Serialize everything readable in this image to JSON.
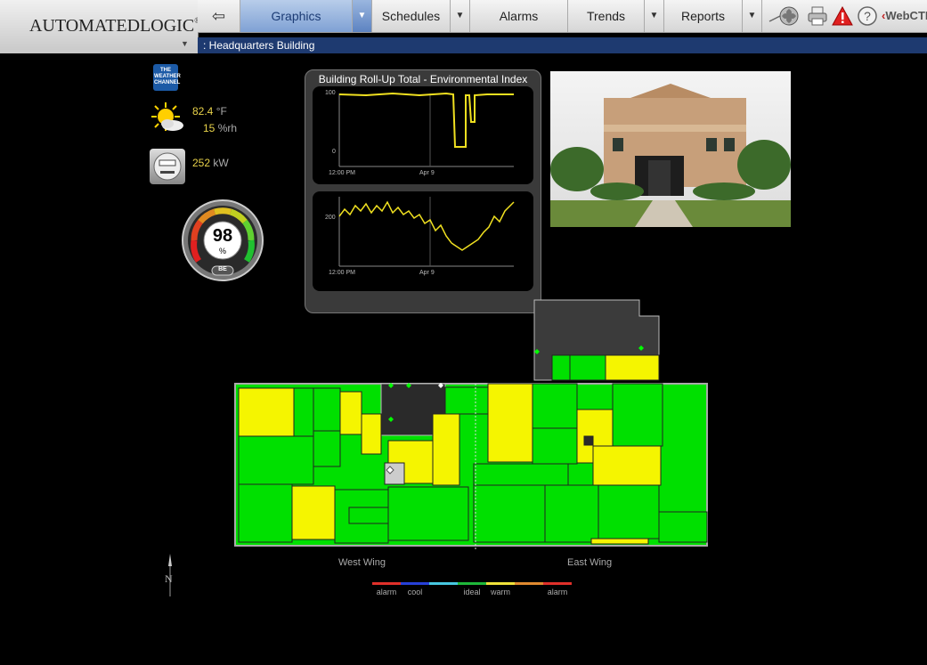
{
  "app": {
    "logo": "AutomatedLogic",
    "logo_mark": "®"
  },
  "nav": {
    "tabs": [
      {
        "label": "Graphics",
        "active": true,
        "has_dropdown": true
      },
      {
        "label": "Schedules",
        "active": false,
        "has_dropdown": true
      },
      {
        "label": "Alarms",
        "active": false,
        "has_dropdown": false
      },
      {
        "label": "Trends",
        "active": false,
        "has_dropdown": true
      },
      {
        "label": "Reports",
        "active": false,
        "has_dropdown": true
      }
    ],
    "brand": "WebCTRL"
  },
  "breadcrumb": ": Headquarters Building",
  "weather": {
    "badge": "THE WEATHER CHANNEL",
    "temp_value": "82.4",
    "temp_unit": "°F",
    "humidity_value": "15",
    "humidity_unit": "%rh"
  },
  "power": {
    "value": "252",
    "unit": "kW"
  },
  "gauge": {
    "value": "98",
    "unit": "%",
    "tag": "BE",
    "level_percent": 98
  },
  "trend": {
    "title": "Building Roll-Up Total - Environmental Index",
    "chart1": {
      "y_top": "100",
      "y_bottom": "0",
      "x_left": "12:00 PM",
      "x_mid": "Apr 9"
    },
    "chart2": {
      "y_mid": "200",
      "x_left": "12:00 PM",
      "x_mid": "Apr 9"
    }
  },
  "floorplan": {
    "west_label": "West Wing",
    "east_label": "East Wing"
  },
  "legend": {
    "items": [
      {
        "label": "alarm",
        "color": "#e0302a"
      },
      {
        "label": "cool",
        "color": "#2740d8"
      },
      {
        "label": "",
        "color": "#47c8e0"
      },
      {
        "label": "ideal",
        "color": "#1fb83a"
      },
      {
        "label": "warm",
        "color": "#f0e23a"
      },
      {
        "label": "",
        "color": "#e08a30"
      },
      {
        "label": "alarm",
        "color": "#e0302a"
      }
    ]
  },
  "compass_label": "N",
  "colors": {
    "ideal": "#00e000",
    "warm": "#f5f500",
    "unoccupied": "#2a2a2a",
    "nav_active": "#7fa1d4",
    "breadcrumb_bg": "#1e3a70"
  }
}
